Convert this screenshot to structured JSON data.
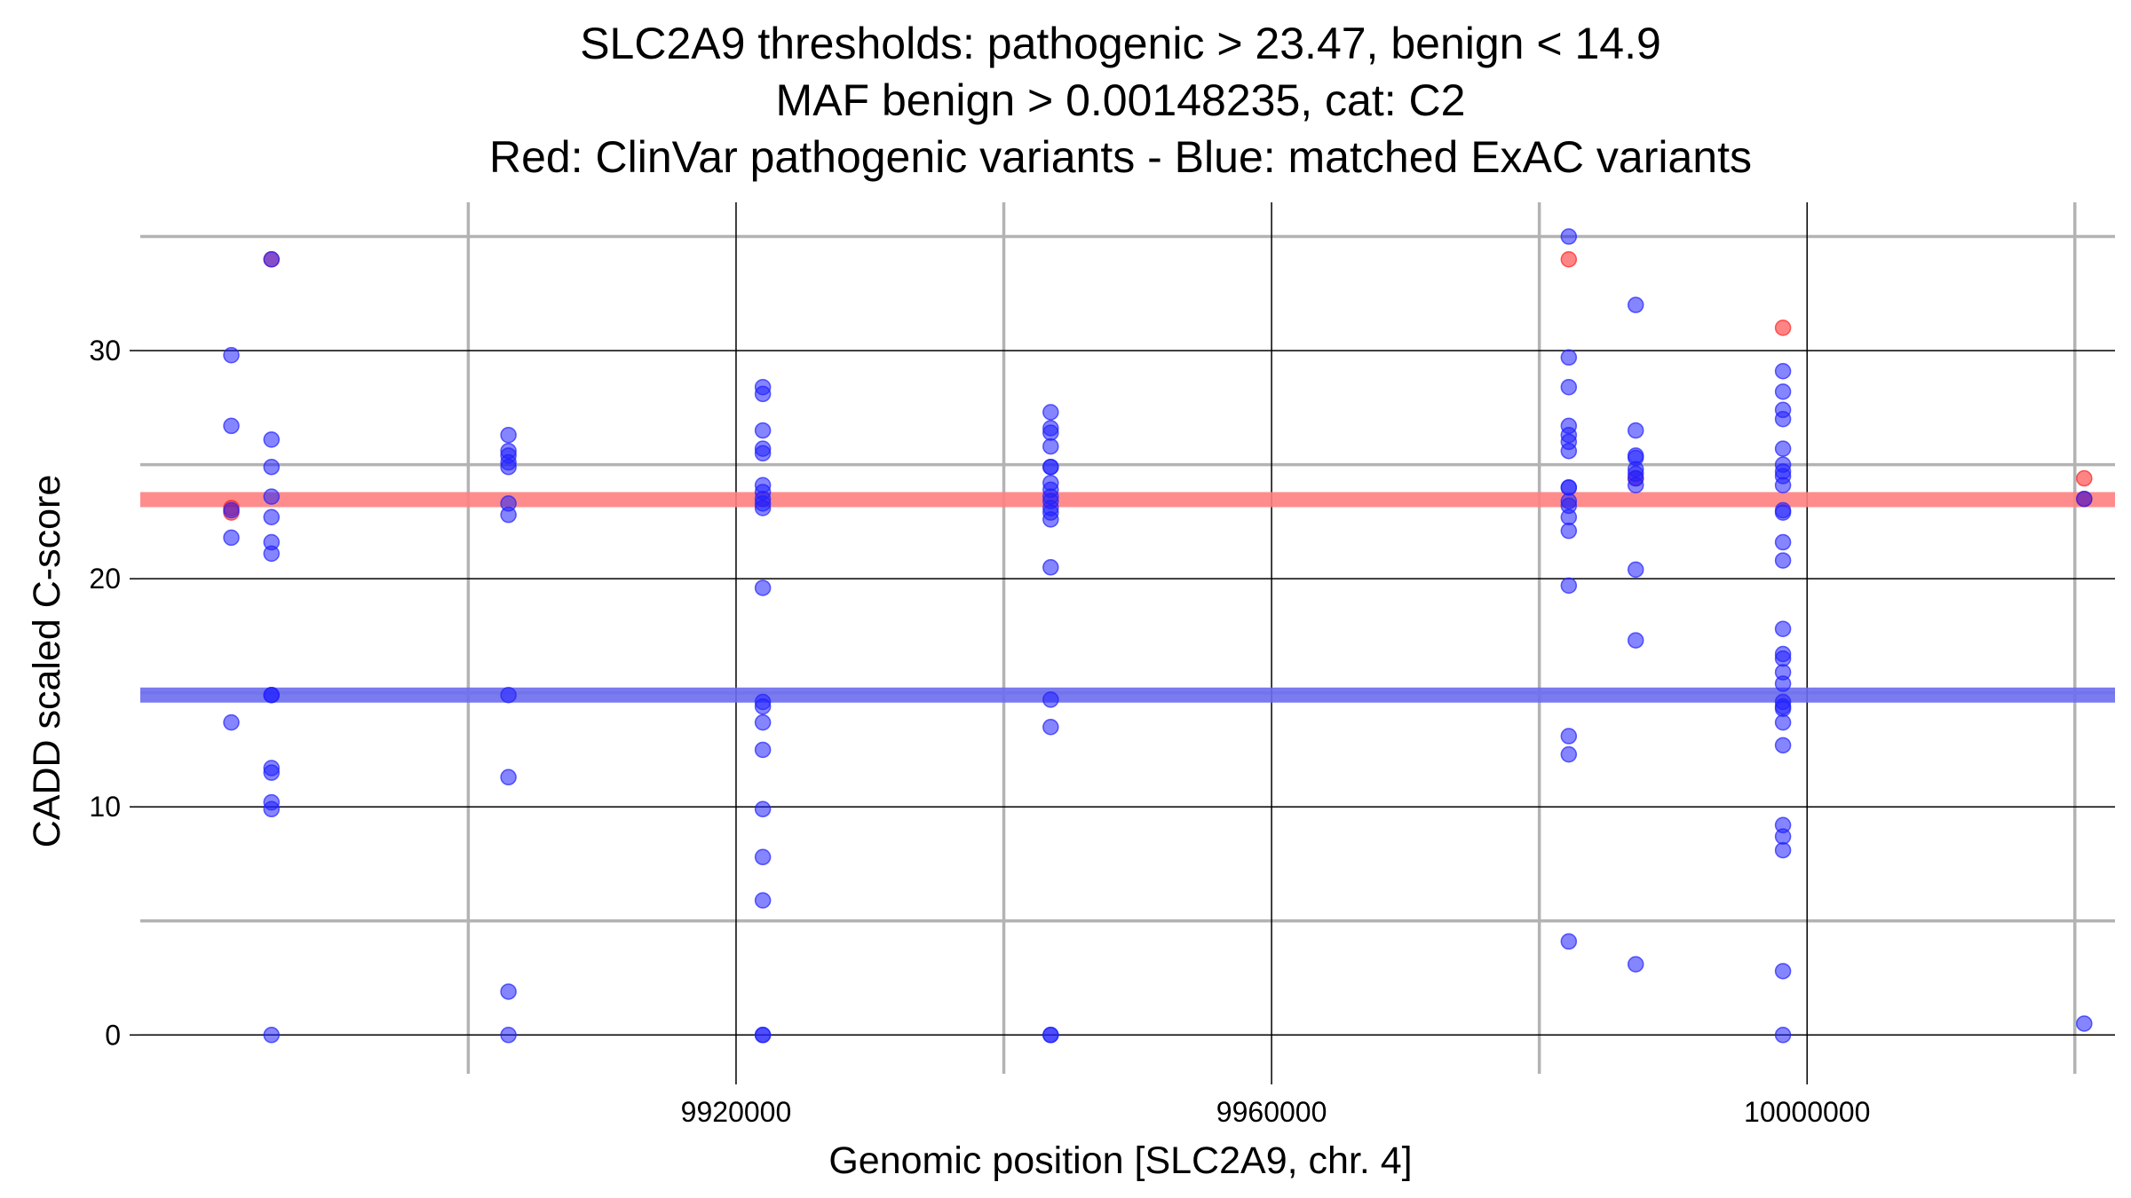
{
  "chart_data": {
    "type": "scatter",
    "title_lines": [
      "SLC2A9 thresholds: pathogenic > 23.47, benign < 14.9",
      "MAF benign > 0.00148235, cat: C2",
      "Red: ClinVar pathogenic variants - Blue: matched ExAC variants"
    ],
    "xlabel": "Genomic position [SLC2A9, chr. 4]",
    "ylabel": "CADD scaled C-score",
    "xlim": [
      9875500,
      10023000
    ],
    "ylim": [
      -1.7,
      36.5
    ],
    "x_ticks": [
      9920000,
      9960000,
      10000000
    ],
    "x_tick_labels": [
      "9920000",
      "9960000",
      "10000000"
    ],
    "x_minor_ticks": [
      9900000,
      9940000,
      9980000,
      10020000
    ],
    "y_ticks": [
      0,
      10,
      20,
      30
    ],
    "y_tick_labels": [
      "0",
      "10",
      "20",
      "30"
    ],
    "y_minor_ticks": [
      5,
      15,
      25,
      35
    ],
    "grid": true,
    "thresholds": [
      {
        "kind": "pathogenic",
        "value": 23.47,
        "color": "#ff8080"
      },
      {
        "kind": "benign",
        "value": 14.9,
        "color": "#6b6bf0"
      }
    ],
    "series": [
      {
        "color": "#ff2020",
        "points": [
          [
            9882300,
            23.1
          ],
          [
            9882300,
            22.9
          ],
          [
            9885300,
            34.0
          ],
          [
            9982200,
            34.0
          ],
          [
            9987200,
            24.4
          ],
          [
            9998200,
            31.0
          ],
          [
            10020700,
            24.4
          ],
          [
            10020700,
            23.5
          ]
        ]
      },
      {
        "color": "#2020ff",
        "points": [
          [
            9882300,
            29.8
          ],
          [
            9882300,
            26.7
          ],
          [
            9882300,
            23.0
          ],
          [
            9882300,
            21.8
          ],
          [
            9882300,
            13.7
          ],
          [
            9885300,
            34.0
          ],
          [
            9885300,
            26.1
          ],
          [
            9885300,
            24.9
          ],
          [
            9885300,
            23.6
          ],
          [
            9885300,
            22.7
          ],
          [
            9885300,
            21.6
          ],
          [
            9885300,
            21.1
          ],
          [
            9885300,
            14.9
          ],
          [
            9885300,
            14.9
          ],
          [
            9885300,
            11.7
          ],
          [
            9885300,
            11.5
          ],
          [
            9885300,
            10.2
          ],
          [
            9885300,
            9.9
          ],
          [
            9885300,
            0.0
          ],
          [
            9903000,
            26.3
          ],
          [
            9903000,
            25.6
          ],
          [
            9903000,
            25.4
          ],
          [
            9903000,
            25.1
          ],
          [
            9903000,
            24.9
          ],
          [
            9903000,
            23.3
          ],
          [
            9903000,
            22.8
          ],
          [
            9903000,
            14.9
          ],
          [
            9903000,
            11.3
          ],
          [
            9903000,
            1.9
          ],
          [
            9903000,
            0.0
          ],
          [
            9922000,
            28.4
          ],
          [
            9922000,
            28.1
          ],
          [
            9922000,
            26.5
          ],
          [
            9922000,
            25.7
          ],
          [
            9922000,
            25.5
          ],
          [
            9922000,
            24.1
          ],
          [
            9922000,
            23.8
          ],
          [
            9922000,
            23.5
          ],
          [
            9922000,
            23.3
          ],
          [
            9922000,
            23.1
          ],
          [
            9922000,
            19.6
          ],
          [
            9922000,
            14.6
          ],
          [
            9922000,
            14.4
          ],
          [
            9922000,
            13.7
          ],
          [
            9922000,
            12.5
          ],
          [
            9922000,
            9.9
          ],
          [
            9922000,
            7.8
          ],
          [
            9922000,
            5.9
          ],
          [
            9922000,
            0.0
          ],
          [
            9922000,
            0.0
          ],
          [
            9943500,
            27.3
          ],
          [
            9943500,
            26.6
          ],
          [
            9943500,
            26.4
          ],
          [
            9943500,
            25.8
          ],
          [
            9943500,
            24.9
          ],
          [
            9943500,
            24.9
          ],
          [
            9943500,
            24.2
          ],
          [
            9943500,
            23.9
          ],
          [
            9943500,
            23.6
          ],
          [
            9943500,
            23.4
          ],
          [
            9943500,
            23.1
          ],
          [
            9943500,
            22.9
          ],
          [
            9943500,
            22.6
          ],
          [
            9943500,
            20.5
          ],
          [
            9943500,
            14.7
          ],
          [
            9943500,
            13.5
          ],
          [
            9943500,
            0.0
          ],
          [
            9943500,
            0.0
          ],
          [
            9982200,
            35.0
          ],
          [
            9982200,
            29.7
          ],
          [
            9982200,
            28.4
          ],
          [
            9982200,
            26.7
          ],
          [
            9982200,
            26.3
          ],
          [
            9982200,
            26.0
          ],
          [
            9982200,
            25.6
          ],
          [
            9982200,
            24.0
          ],
          [
            9982200,
            24.0
          ],
          [
            9982200,
            23.4
          ],
          [
            9982200,
            23.2
          ],
          [
            9982200,
            22.7
          ],
          [
            9982200,
            22.1
          ],
          [
            9982200,
            19.7
          ],
          [
            9982200,
            13.1
          ],
          [
            9982200,
            12.3
          ],
          [
            9982200,
            4.1
          ],
          [
            9987200,
            32.0
          ],
          [
            9987200,
            26.5
          ],
          [
            9987200,
            25.4
          ],
          [
            9987200,
            25.3
          ],
          [
            9987200,
            24.8
          ],
          [
            9987200,
            24.6
          ],
          [
            9987200,
            24.4
          ],
          [
            9987200,
            24.1
          ],
          [
            9987200,
            20.4
          ],
          [
            9987200,
            17.3
          ],
          [
            9987200,
            3.1
          ],
          [
            9998200,
            29.1
          ],
          [
            9998200,
            28.2
          ],
          [
            9998200,
            27.4
          ],
          [
            9998200,
            27.0
          ],
          [
            9998200,
            25.7
          ],
          [
            9998200,
            25.0
          ],
          [
            9998200,
            24.7
          ],
          [
            9998200,
            24.5
          ],
          [
            9998200,
            24.1
          ],
          [
            9998200,
            23.0
          ],
          [
            9998200,
            22.9
          ],
          [
            9998200,
            21.6
          ],
          [
            9998200,
            20.8
          ],
          [
            9998200,
            17.8
          ],
          [
            9998200,
            16.7
          ],
          [
            9998200,
            16.5
          ],
          [
            9998200,
            15.9
          ],
          [
            9998200,
            15.4
          ],
          [
            9998200,
            14.6
          ],
          [
            9998200,
            14.4
          ],
          [
            9998200,
            14.3
          ],
          [
            9998200,
            13.7
          ],
          [
            9998200,
            12.7
          ],
          [
            9998200,
            9.2
          ],
          [
            9998200,
            8.7
          ],
          [
            9998200,
            8.1
          ],
          [
            9998200,
            2.8
          ],
          [
            9998200,
            0.0
          ],
          [
            10020700,
            23.5
          ],
          [
            10020700,
            0.5
          ]
        ]
      }
    ]
  }
}
